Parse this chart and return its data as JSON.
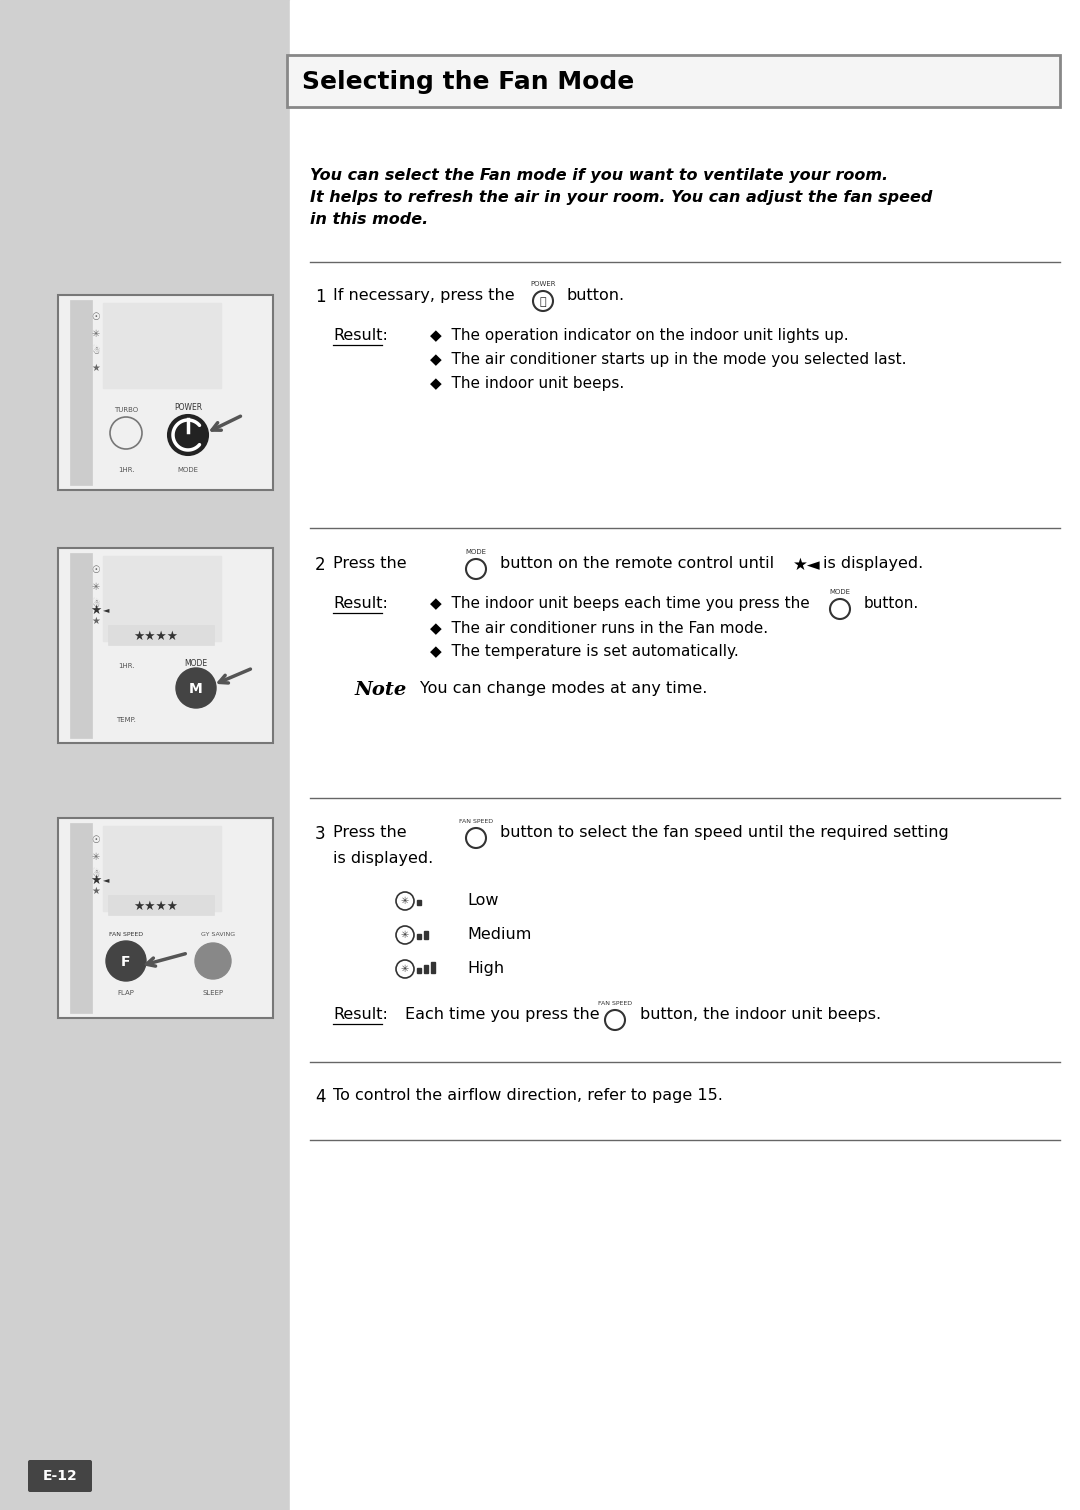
{
  "title": "Selecting the Fan Mode",
  "bg_left": "#d0d0d0",
  "bg_main": "#ffffff",
  "intro_text_line1": "You can select the Fan mode if you want to ventilate your room.",
  "intro_text_line2": "It helps to refresh the air in your room. You can adjust the fan speed",
  "intro_text_line3": "in this mode.",
  "step1_result_lines": [
    "◆  The operation indicator on the indoor unit lights up.",
    "◆  The air conditioner starts up in the mode you selected last.",
    "◆  The indoor unit beeps."
  ],
  "step2_result_line1": "◆  The indoor unit beeps each time you press the",
  "step2_result_line2": "◆  The air conditioner runs in the Fan mode.",
  "step2_result_line3": "◆  The temperature is set automatically.",
  "step2_note": "You can change modes at any time.",
  "step3_speeds": [
    "Low",
    "Medium",
    "High"
  ],
  "step3_result_pre": "Each time you press the",
  "step3_result_post": "button, the indoor unit beeps.",
  "step4_text": "To control the airflow direction, refer to page 15.",
  "page_num": "E-12"
}
